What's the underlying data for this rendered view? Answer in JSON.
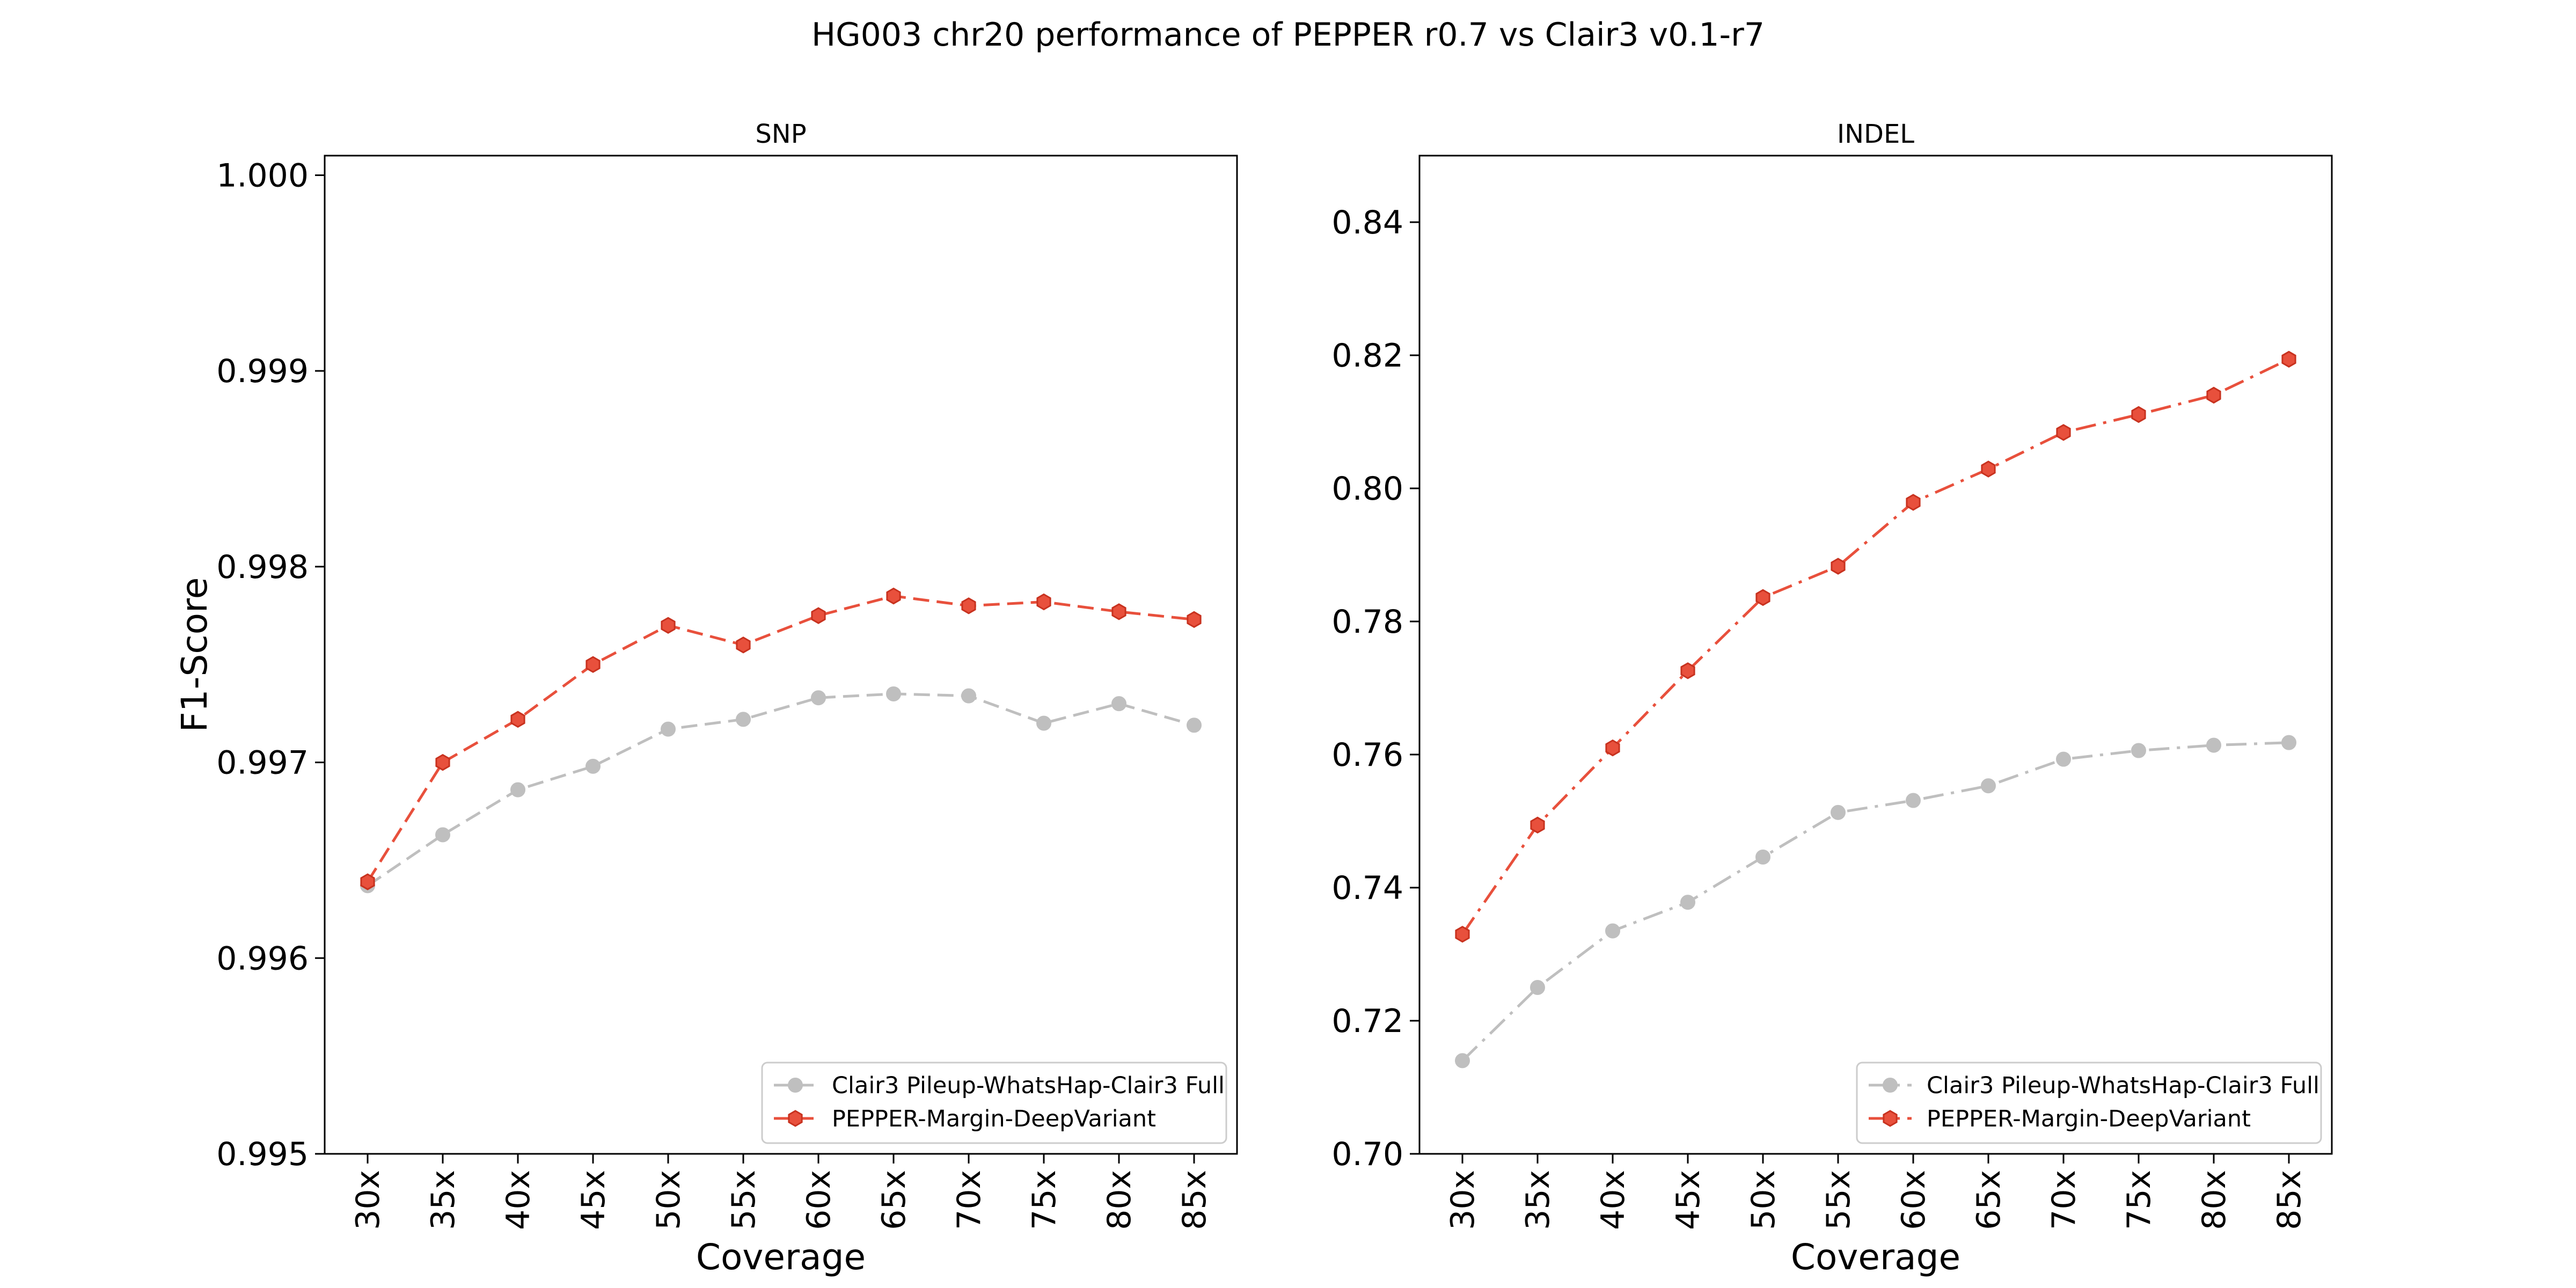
{
  "figure": {
    "title": "HG003 chr20 performance of PEPPER r0.7 vs Clair3 v0.1-r7"
  },
  "chart_data": [
    {
      "type": "line",
      "title": "SNP",
      "xlabel": "Coverage",
      "ylabel": "F1-Score",
      "categories": [
        "30x",
        "35x",
        "40x",
        "45x",
        "50x",
        "55x",
        "60x",
        "65x",
        "70x",
        "75x",
        "80x",
        "85x"
      ],
      "ylim": [
        0.995,
        1.0001
      ],
      "yticks": [
        0.995,
        0.996,
        0.997,
        0.998,
        0.999,
        1.0
      ],
      "ytick_labels": [
        "0.995",
        "0.996",
        "0.997",
        "0.998",
        "0.999",
        "1.000"
      ],
      "legend_placement": "lower-right",
      "grid": false,
      "series": [
        {
          "name": "Clair3 Pileup-WhatsHap-Clair3 Full",
          "color": "#bfbfbf",
          "line_style": "dashed",
          "marker": "circle",
          "values": [
            0.99637,
            0.99663,
            0.99686,
            0.99698,
            0.99717,
            0.99722,
            0.99733,
            0.99735,
            0.99734,
            0.9972,
            0.9973,
            0.99719
          ]
        },
        {
          "name": "PEPPER-Margin-DeepVariant",
          "color": "#e8503c",
          "line_style": "dashed",
          "marker": "hexagon",
          "values": [
            0.99639,
            0.997,
            0.99722,
            0.9975,
            0.9977,
            0.9976,
            0.99775,
            0.99785,
            0.9978,
            0.99782,
            0.99777,
            0.99773
          ]
        }
      ]
    },
    {
      "type": "line",
      "title": "INDEL",
      "xlabel": "Coverage",
      "ylabel": "",
      "categories": [
        "30x",
        "35x",
        "40x",
        "45x",
        "50x",
        "55x",
        "60x",
        "65x",
        "70x",
        "75x",
        "80x",
        "85x"
      ],
      "ylim": [
        0.7,
        0.85
      ],
      "yticks": [
        0.7,
        0.72,
        0.74,
        0.76,
        0.78,
        0.8,
        0.82,
        0.84
      ],
      "ytick_labels": [
        "0.70",
        "0.72",
        "0.74",
        "0.76",
        "0.78",
        "0.80",
        "0.82",
        "0.84"
      ],
      "legend_placement": "lower-right",
      "grid": false,
      "series": [
        {
          "name": "Clair3 Pileup-WhatsHap-Clair3 Full",
          "color": "#bfbfbf",
          "line_style": "dashdot",
          "marker": "circle",
          "values": [
            0.714,
            0.725,
            0.7335,
            0.7378,
            0.7446,
            0.7513,
            0.7531,
            0.7553,
            0.7593,
            0.7606,
            0.7614,
            0.7618
          ]
        },
        {
          "name": "PEPPER-Margin-DeepVariant",
          "color": "#e8503c",
          "line_style": "dashdot",
          "marker": "hexagon",
          "values": [
            0.733,
            0.7494,
            0.761,
            0.7726,
            0.7836,
            0.7883,
            0.7979,
            0.8029,
            0.8084,
            0.8111,
            0.814,
            0.8194
          ]
        }
      ]
    }
  ]
}
